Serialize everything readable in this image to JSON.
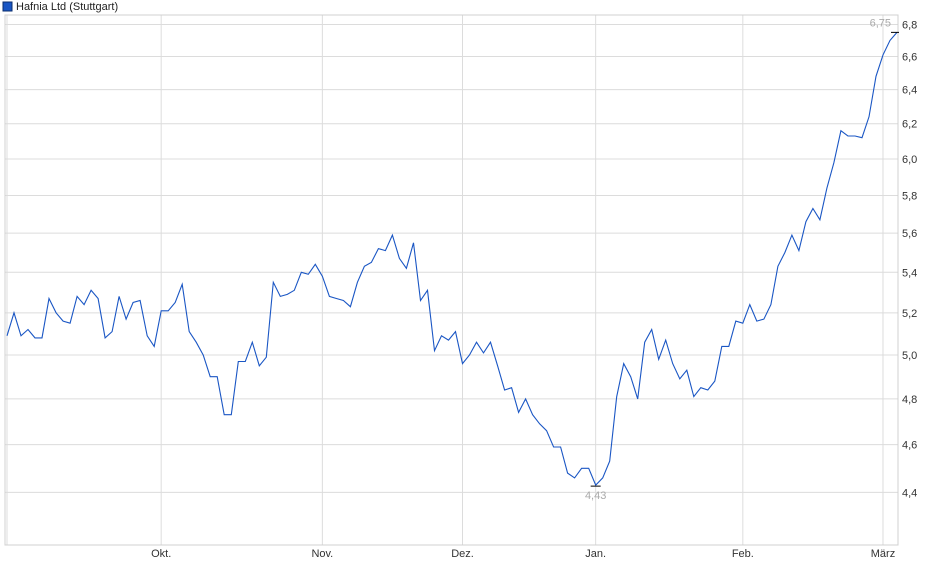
{
  "chart_data": {
    "type": "line",
    "title": "",
    "xlabel": "",
    "ylabel": "",
    "y_scale": "log",
    "ylim": [
      4.19,
      6.86
    ],
    "grid": true,
    "legend_position": "top-left",
    "series": [
      {
        "name": "Hafnia Ltd (Stuttgart)",
        "color": "#1a56c4",
        "values": [
          5.09,
          5.2,
          5.09,
          5.12,
          5.08,
          5.08,
          5.27,
          5.2,
          5.16,
          5.15,
          5.28,
          5.24,
          5.31,
          5.27,
          5.08,
          5.11,
          5.28,
          5.17,
          5.25,
          5.26,
          5.09,
          5.04,
          5.21,
          5.21,
          5.25,
          5.34,
          5.11,
          5.06,
          5.0,
          4.9,
          4.9,
          4.73,
          4.73,
          4.97,
          4.97,
          5.06,
          4.95,
          4.99,
          5.35,
          5.28,
          5.29,
          5.31,
          5.4,
          5.39,
          5.44,
          5.38,
          5.28,
          5.27,
          5.26,
          5.23,
          5.35,
          5.43,
          5.45,
          5.52,
          5.51,
          5.59,
          5.47,
          5.42,
          5.55,
          5.26,
          5.31,
          5.02,
          5.09,
          5.07,
          5.11,
          4.96,
          5.0,
          5.06,
          5.01,
          5.06,
          4.95,
          4.84,
          4.85,
          4.74,
          4.8,
          4.73,
          4.69,
          4.66,
          4.59,
          4.59,
          4.48,
          4.46,
          4.5,
          4.5,
          4.43,
          4.46,
          4.53,
          4.81,
          4.96,
          4.9,
          4.8,
          5.06,
          5.12,
          4.98,
          5.07,
          4.96,
          4.89,
          4.93,
          4.81,
          4.85,
          4.84,
          4.88,
          5.04,
          5.04,
          5.16,
          5.15,
          5.24,
          5.16,
          5.17,
          5.24,
          5.43,
          5.5,
          5.59,
          5.51,
          5.66,
          5.73,
          5.67,
          5.84,
          5.98,
          6.16,
          6.13,
          6.13,
          6.12,
          6.24,
          6.48,
          6.61,
          6.7,
          6.75
        ]
      }
    ],
    "x_ticks": [
      {
        "label": "Okt.",
        "index": 22
      },
      {
        "label": "Nov.",
        "index": 45
      },
      {
        "label": "Dez.",
        "index": 65
      },
      {
        "label": "Jan.",
        "index": 84
      },
      {
        "label": "Feb.",
        "index": 105
      },
      {
        "label": "März",
        "index": 125
      }
    ],
    "y_ticks": [
      {
        "value": 4.4,
        "label": "4,4"
      },
      {
        "value": 4.6,
        "label": "4,6"
      },
      {
        "value": 4.8,
        "label": "4,8"
      },
      {
        "value": 5.0,
        "label": "5,0"
      },
      {
        "value": 5.2,
        "label": "5,2"
      },
      {
        "value": 5.4,
        "label": "5,4"
      },
      {
        "value": 5.6,
        "label": "5,6"
      },
      {
        "value": 5.8,
        "label": "5,8"
      },
      {
        "value": 6.0,
        "label": "6,0"
      },
      {
        "value": 6.2,
        "label": "6,2"
      },
      {
        "value": 6.4,
        "label": "6,4"
      },
      {
        "value": 6.6,
        "label": "6,6"
      },
      {
        "value": 6.8,
        "label": "6,8"
      }
    ],
    "annotations": {
      "max": {
        "label": "6,75",
        "value": 6.75
      },
      "min": {
        "label": "4,43",
        "value": 4.43
      }
    }
  },
  "colors": {
    "line": "#1a56c4",
    "grid": "#dcdcdc",
    "annotation": "#aaaaaa"
  }
}
